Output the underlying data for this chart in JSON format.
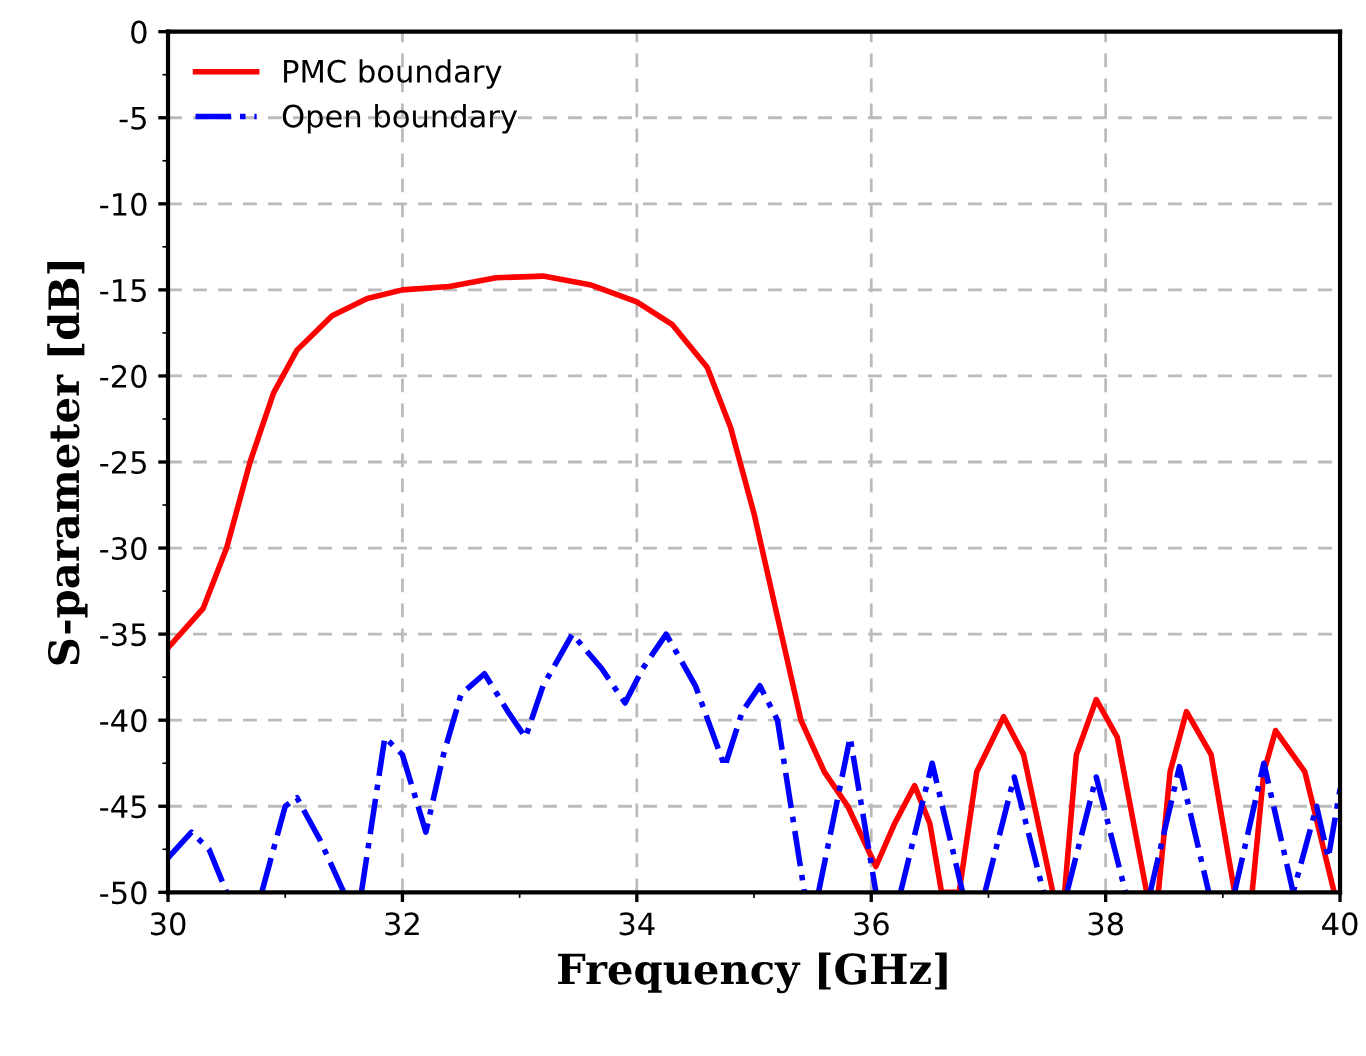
{
  "chart_data": {
    "type": "line",
    "xlabel": "Frequency [GHz]",
    "ylabel": "S-parameter [dB]",
    "xlim": [
      30,
      40
    ],
    "ylim": [
      -50,
      0
    ],
    "xticks": [
      30,
      32,
      34,
      36,
      38,
      40
    ],
    "yticks": [
      0,
      -5,
      -10,
      -15,
      -20,
      -25,
      -30,
      -35,
      -40,
      -45,
      -50
    ],
    "grid": true,
    "legend": "top left",
    "series": [
      {
        "name": "PMC boundary",
        "color": "#ff0000",
        "line_style": "solid",
        "x": [
          30.0,
          30.3,
          30.5,
          30.7,
          30.9,
          31.1,
          31.4,
          31.7,
          32.0,
          32.4,
          32.8,
          33.2,
          33.6,
          34.0,
          34.3,
          34.6,
          34.8,
          35.0,
          35.2,
          35.4,
          35.6,
          35.8,
          36.04,
          36.2,
          36.37,
          36.5,
          36.6,
          36.75,
          36.9,
          37.13,
          37.3,
          37.55,
          37.6,
          37.65,
          37.75,
          37.92,
          38.1,
          38.35,
          38.4,
          38.45,
          38.55,
          38.69,
          38.9,
          39.1,
          39.2,
          39.25,
          39.35,
          39.45,
          39.7,
          39.95
        ],
        "values": [
          -35.8,
          -33.5,
          -30,
          -25,
          -21,
          -18.5,
          -16.5,
          -15.5,
          -15.0,
          -14.8,
          -14.3,
          -14.2,
          -14.7,
          -15.7,
          -17,
          -19.5,
          -23,
          -28,
          -34,
          -40,
          -43,
          -45,
          -48.5,
          -46,
          -43.8,
          -46,
          -50,
          -50,
          -43,
          -39.8,
          -42,
          -50,
          null,
          -50,
          -42,
          -38.8,
          -41,
          -50,
          null,
          -50,
          -43,
          -39.5,
          -42,
          -50,
          null,
          -50,
          -43,
          -40.6,
          -43,
          -50
        ]
      },
      {
        "name": "Open boundary",
        "color": "#0000ff",
        "line_style": "dashdot",
        "x": [
          30.0,
          30.2,
          30.35,
          30.5,
          30.65,
          30.8,
          31.0,
          31.1,
          31.3,
          31.5,
          31.6,
          31.65,
          31.85,
          32.0,
          32.2,
          32.35,
          32.5,
          32.7,
          32.9,
          33.05,
          33.2,
          33.45,
          33.7,
          33.9,
          34.05,
          34.25,
          34.5,
          34.75,
          34.9,
          35.05,
          35.2,
          35.43,
          35.5,
          35.55,
          35.82,
          36.04,
          36.1,
          36.25,
          36.52,
          36.78,
          36.85,
          36.97,
          37.22,
          37.47,
          37.6,
          37.67,
          37.92,
          38.17,
          38.25,
          38.38,
          38.63,
          38.88,
          38.95,
          39.1,
          39.35,
          39.6,
          39.8,
          39.9,
          40.0
        ],
        "values": [
          -48,
          -46.5,
          -47.5,
          -50,
          null,
          -50,
          -45,
          -44.5,
          -47,
          -50,
          null,
          -50,
          -41,
          -42,
          -46.5,
          -42,
          -38.5,
          -37.3,
          -39.5,
          -41,
          -38,
          -35,
          -37,
          -39,
          -37,
          -35,
          -38,
          -42.7,
          -39.5,
          -38,
          -40,
          -50,
          null,
          -50,
          -41,
          -50,
          null,
          -50,
          -42.5,
          -50,
          null,
          -50,
          -43.3,
          -50,
          null,
          -50,
          -43.3,
          -50,
          null,
          -50,
          -42.7,
          -50,
          null,
          -50,
          -42.5,
          -50,
          -45,
          -48,
          -44
        ]
      }
    ]
  }
}
